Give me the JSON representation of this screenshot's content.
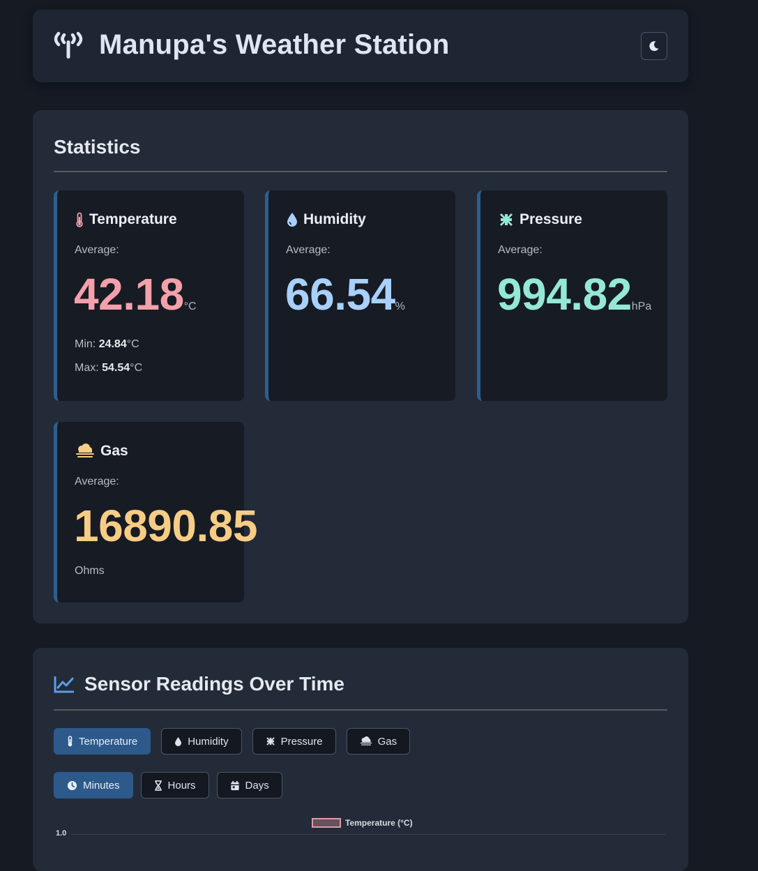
{
  "header": {
    "title": "Manupa's Weather Station",
    "antenna_icon": "antenna-icon",
    "theme_icon": "moon-icon"
  },
  "stats": {
    "title": "Statistics",
    "temperature": {
      "label": "Temperature",
      "avg_label": "Average:",
      "value": "42.18",
      "unit": "°C",
      "min_label": "Min:",
      "min_value": "24.84",
      "max_label": "Max:",
      "max_value": "54.54",
      "mm_unit": "°C",
      "color": "#f4a0ab"
    },
    "humidity": {
      "label": "Humidity",
      "avg_label": "Average:",
      "value": "66.54",
      "unit": "%",
      "color": "#a8d0fb"
    },
    "pressure": {
      "label": "Pressure",
      "avg_label": "Average:",
      "value": "994.82",
      "unit": "hPa",
      "color": "#94e8d6"
    },
    "gas": {
      "label": "Gas",
      "avg_label": "Average:",
      "value": "16890.85",
      "unit": "Ohms",
      "color": "#f7cd85"
    }
  },
  "chart": {
    "title": "Sensor Readings Over Time",
    "sensor_tabs": [
      {
        "label": "Temperature",
        "active": true
      },
      {
        "label": "Humidity",
        "active": false
      },
      {
        "label": "Pressure",
        "active": false
      },
      {
        "label": "Gas",
        "active": false
      }
    ],
    "range_tabs": [
      {
        "label": "Minutes",
        "active": true
      },
      {
        "label": "Hours",
        "active": false
      },
      {
        "label": "Days",
        "active": false
      }
    ],
    "legend": "Temperature (°C)",
    "y_tick": "1.0"
  }
}
